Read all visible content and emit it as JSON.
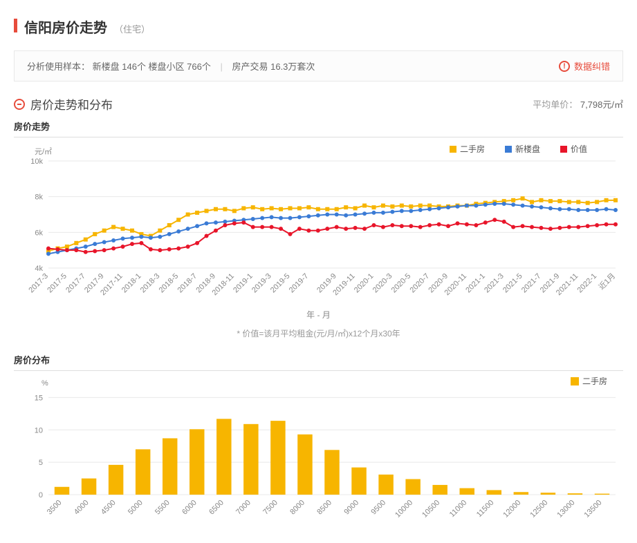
{
  "header": {
    "title": "信阳房价走势",
    "subtitle": "（住宅）"
  },
  "info": {
    "prefix": "分析使用样本：",
    "sample1": "新楼盘 146个 楼盘小区 766个",
    "sample2": "房产交易 16.3万套次",
    "error_report": "数据纠错"
  },
  "section": {
    "title": "房价走势和分布",
    "avg_label": "平均单价：",
    "avg_value": "7,798元/㎡"
  },
  "trend_chart": {
    "type": "line",
    "title": "房价走势",
    "y_label": "元/㎡",
    "x_axis_title": "年 - 月",
    "ylim": [
      4000,
      10000
    ],
    "yticks": [
      4000,
      6000,
      8000,
      10000
    ],
    "ytick_labels": [
      "4k",
      "6k",
      "8k",
      "10k"
    ],
    "x_labels": [
      "2017-3",
      "2017-5",
      "2017-7",
      "2017-9",
      "2017-11",
      "2018-1",
      "2018-3",
      "2018-5",
      "2018-7",
      "2018-9",
      "2018-11",
      "2019-1",
      "2019-3",
      "2019-5",
      "2019-7",
      "2019-9",
      "2019-11",
      "2020-1",
      "2020-3",
      "2020-5",
      "2020-7",
      "2020-9",
      "2020-11",
      "2021-1",
      "2021-3",
      "2021-5",
      "2021-7",
      "2021-9",
      "2021-11",
      "2022-1",
      "近1月"
    ],
    "legend": [
      {
        "name": "二手房",
        "color": "#f7b500"
      },
      {
        "name": "新楼盘",
        "color": "#3a7bd5"
      },
      {
        "name": "价值",
        "color": "#e8152a"
      }
    ],
    "series": {
      "secondhand": {
        "color": "#f7b500",
        "marker": "square",
        "values": [
          4950,
          5100,
          5200,
          5400,
          5600,
          5900,
          6100,
          6300,
          6200,
          6100,
          5900,
          5800,
          6100,
          6400,
          6700,
          7000,
          7100,
          7200,
          7300,
          7300,
          7200,
          7350,
          7400,
          7300,
          7350,
          7300,
          7350,
          7350,
          7400,
          7300,
          7300,
          7300,
          7400,
          7350,
          7500,
          7400,
          7500,
          7450,
          7500,
          7450,
          7500,
          7500,
          7450,
          7450,
          7500,
          7500,
          7600,
          7650,
          7700,
          7750,
          7800,
          7900,
          7700,
          7800,
          7750,
          7750,
          7700,
          7700,
          7650,
          7700,
          7800,
          7800
        ]
      },
      "newbuild": {
        "color": "#3a7bd5",
        "marker": "circle",
        "values": [
          4800,
          4900,
          5000,
          5100,
          5200,
          5350,
          5450,
          5550,
          5650,
          5700,
          5750,
          5700,
          5750,
          5900,
          6050,
          6200,
          6350,
          6500,
          6550,
          6600,
          6650,
          6700,
          6750,
          6800,
          6850,
          6800,
          6800,
          6850,
          6900,
          6950,
          7000,
          7000,
          6950,
          7000,
          7050,
          7100,
          7100,
          7150,
          7200,
          7200,
          7250,
          7300,
          7350,
          7400,
          7450,
          7500,
          7500,
          7550,
          7600,
          7600,
          7550,
          7500,
          7450,
          7400,
          7350,
          7300,
          7300,
          7250,
          7250,
          7250,
          7300,
          7250
        ]
      },
      "value": {
        "color": "#e8152a",
        "marker": "circle",
        "values": [
          5100,
          5050,
          5000,
          5000,
          4900,
          4950,
          5000,
          5100,
          5200,
          5350,
          5400,
          5050,
          5000,
          5050,
          5100,
          5200,
          5400,
          5800,
          6100,
          6400,
          6500,
          6550,
          6300,
          6300,
          6300,
          6200,
          5900,
          6200,
          6100,
          6100,
          6200,
          6300,
          6200,
          6250,
          6200,
          6400,
          6300,
          6400,
          6350,
          6350,
          6300,
          6400,
          6450,
          6350,
          6500,
          6450,
          6400,
          6550,
          6700,
          6600,
          6300,
          6350,
          6300,
          6250,
          6200,
          6250,
          6300,
          6300,
          6350,
          6400,
          6450,
          6450
        ]
      }
    },
    "footnote": "* 价值=该月平均租金(元/月/㎡)x12个月x30年",
    "grid_color": "#e8e8e8",
    "background_color": "#ffffff",
    "line_width": 2,
    "marker_size": 3
  },
  "dist_chart": {
    "type": "bar",
    "title": "房价分布",
    "y_label": "%",
    "ylim": [
      0,
      16
    ],
    "yticks": [
      0,
      5,
      10,
      15
    ],
    "legend": {
      "name": "二手房",
      "color": "#f7b500"
    },
    "x_labels": [
      "3500",
      "4000",
      "4500",
      "5000",
      "5500",
      "6000",
      "6500",
      "7000",
      "7500",
      "8000",
      "8500",
      "9000",
      "9500",
      "10000",
      "10500",
      "11000",
      "11500",
      "12000",
      "12500",
      "13000",
      "13500"
    ],
    "values": [
      1.2,
      2.5,
      4.6,
      7.0,
      8.7,
      10.1,
      11.7,
      10.9,
      11.4,
      9.3,
      6.9,
      4.2,
      3.1,
      2.4,
      1.5,
      1.0,
      0.7,
      0.4,
      0.3,
      0.2,
      0.15
    ],
    "bar_color": "#f7b500",
    "bar_width": 0.55,
    "grid_color": "#e8e8e8",
    "background_color": "#ffffff"
  }
}
